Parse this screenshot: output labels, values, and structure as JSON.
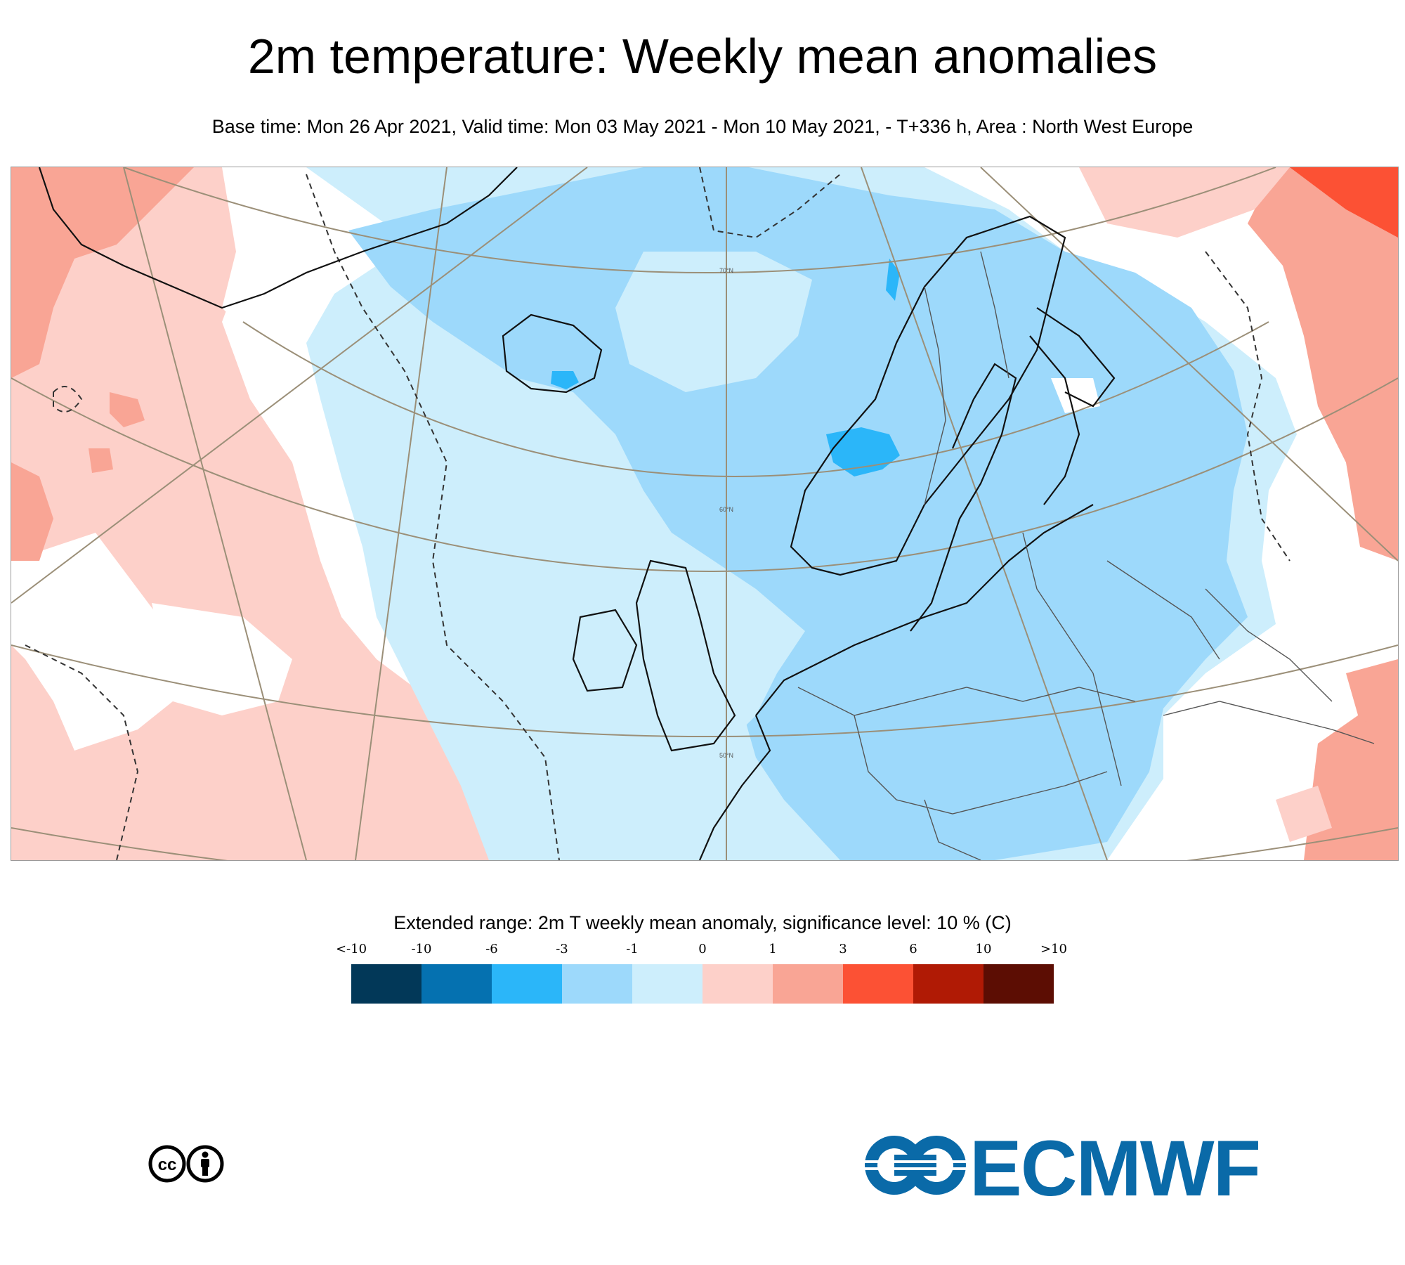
{
  "header": {
    "title": "2m temperature: Weekly mean anomalies",
    "subtitle": "Base time: Mon 26 Apr 2021, Valid time: Mon 03 May 2021 - Mon 10 May 2021, - T+336 h, Area : North West Europe"
  },
  "map": {
    "lat_labels": [
      "70°N",
      "60°N",
      "50°N"
    ]
  },
  "legend": {
    "title": "Extended range: 2m T weekly mean anomaly, significance level: 10 % (C)",
    "ticks": [
      "<-10",
      "-10",
      "-6",
      "-3",
      "-1",
      "0",
      "1",
      "3",
      "6",
      "10",
      ">10"
    ],
    "colors": [
      "#023858",
      "#0571b0",
      "#2bb6f9",
      "#9dd9fb",
      "#cdeefc",
      "#fdd0c9",
      "#f9a595",
      "#fc5134",
      "#b01a05",
      "#5c0d03"
    ]
  },
  "footer": {
    "license_icon": "creative-commons-by-icon",
    "logo_text": "ECMWF"
  }
}
